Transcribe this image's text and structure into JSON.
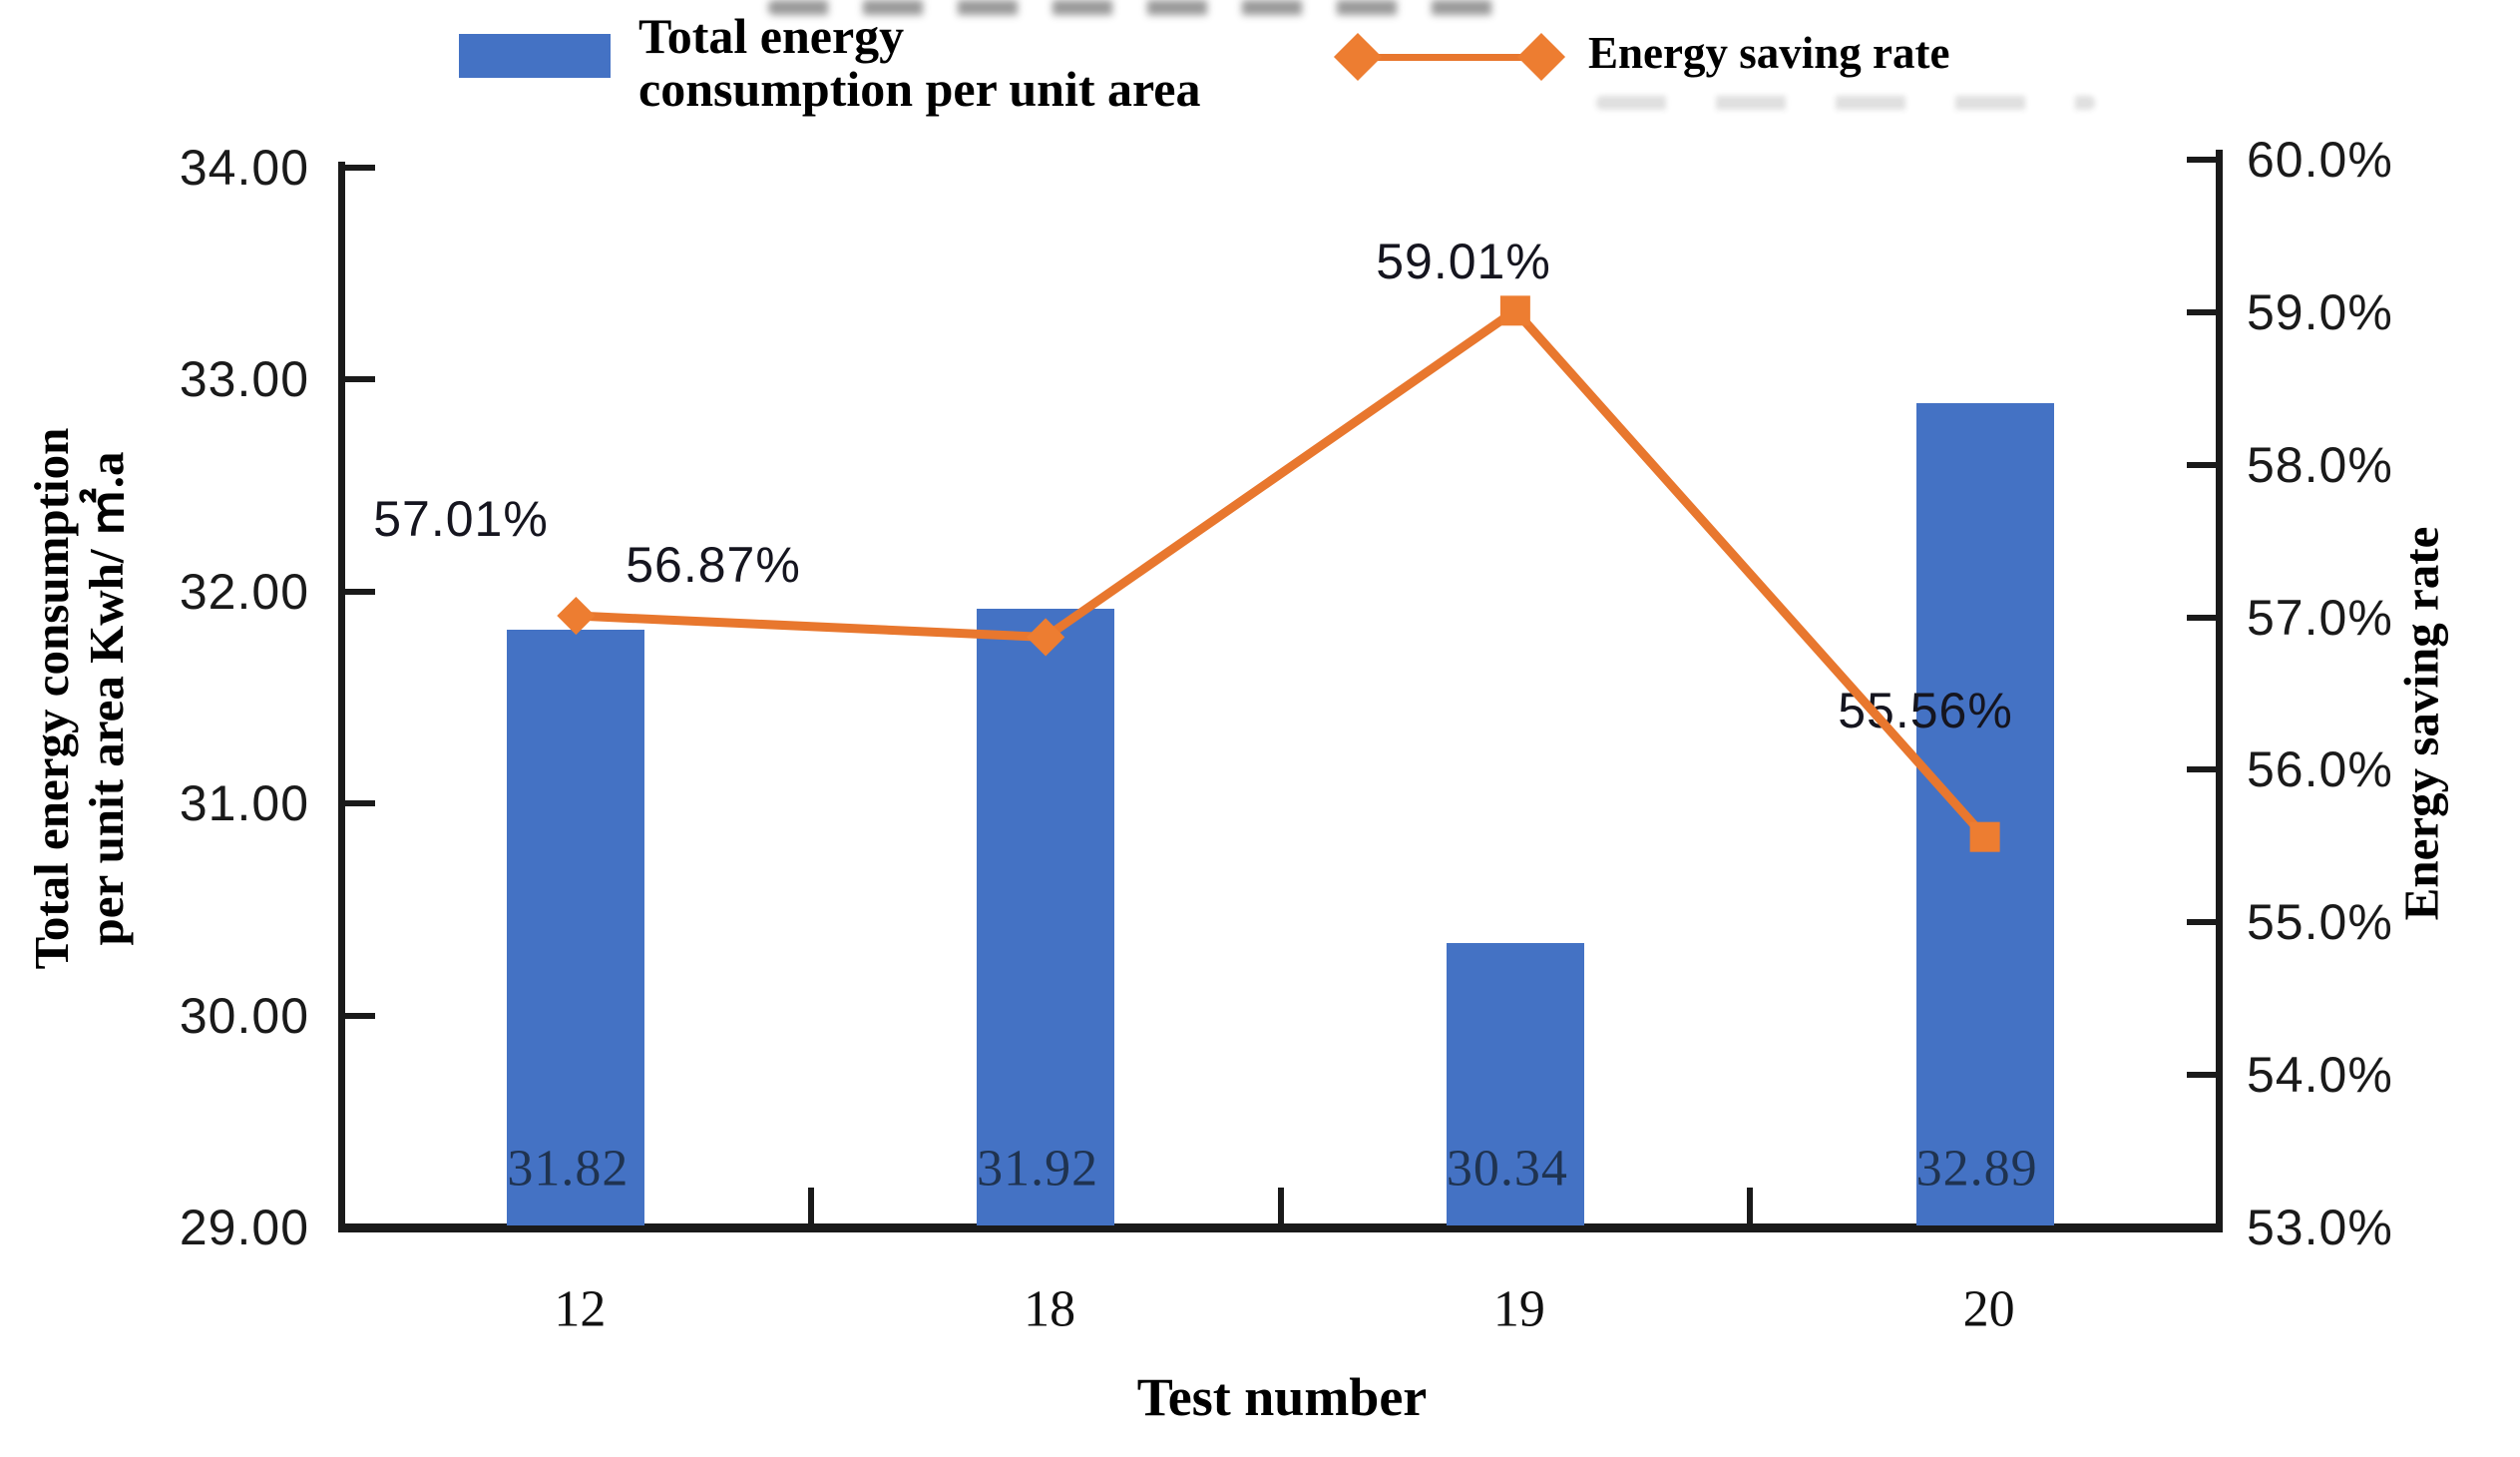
{
  "chart_data": {
    "type": "bar+line",
    "categories": [
      "12",
      "18",
      "19",
      "20"
    ],
    "series": [
      {
        "name": "Total energy consumption per unit area",
        "type": "bar",
        "axis": "left",
        "color": "#4472C4",
        "values": [
          31.82,
          31.92,
          30.34,
          32.89
        ],
        "value_labels": [
          "31.82",
          "31.92",
          "30.34",
          "32.89"
        ]
      },
      {
        "name": "Energy saving rate",
        "type": "line",
        "axis": "right",
        "color": "#ED7D31",
        "values_pct": [
          57.01,
          56.87,
          59.01,
          55.56
        ],
        "value_labels": [
          "57.01%",
          "56.87%",
          "59.01%",
          "55.56%"
        ],
        "markers": [
          "diamond",
          "diamond",
          "square",
          "square"
        ]
      }
    ],
    "xlabel": "Test number",
    "ylabel_left_line1": "Total energy consumption",
    "ylabel_left_line2": "per unit area Kwh/ ㎡.a",
    "ylabel_right": "Energy saving rate",
    "ylim_left": [
      29.0,
      34.0
    ],
    "ylim_right_pct": [
      53.0,
      60.0
    ],
    "left_ticks": [
      "34.00",
      "33.00",
      "32.00",
      "31.00",
      "30.00",
      "29.00"
    ],
    "right_ticks": [
      "60.0%",
      "59.0%",
      "58.0%",
      "57.0%",
      "56.0%",
      "55.0%",
      "54.0%",
      "53.0%"
    ],
    "grid": false,
    "legend_position": "top"
  },
  "legend": {
    "bar_label_line1": "Total energy",
    "bar_label_line2": "consumption per unit area",
    "line_label": "Energy saving rate"
  },
  "colors": {
    "bar": "#4472C4",
    "line": "#E8772E",
    "marker": "#ED7D31",
    "axis": "#1a1a1a"
  }
}
